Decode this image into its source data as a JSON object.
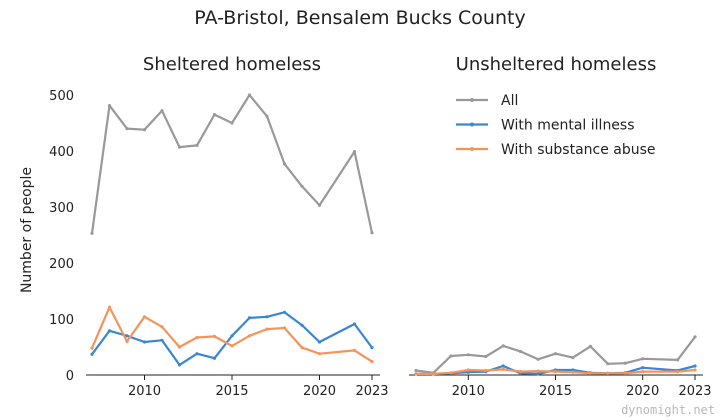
{
  "title": "PA-Bristol, Bensalem Bucks County",
  "watermark": "dynomight.net",
  "ylabel": "Number of people",
  "colors": {
    "All": "#999999",
    "With mental illness": "#3a86d4",
    "With substance abuse": "#f4945a"
  },
  "legend": [
    "All",
    "With mental illness",
    "With substance abuse"
  ],
  "chart_data": [
    {
      "type": "line",
      "title": "Sheltered homeless",
      "ylabel": "Number of people",
      "xlim": [
        2007,
        2023
      ],
      "ylim": [
        0,
        520
      ],
      "xticks": [
        2010,
        2015,
        2020,
        2023
      ],
      "yticks": [
        0,
        100,
        200,
        300,
        400,
        500
      ],
      "x": [
        2007,
        2008,
        2009,
        2010,
        2011,
        2012,
        2013,
        2014,
        2015,
        2016,
        2017,
        2018,
        2019,
        2020,
        2022,
        2023
      ],
      "series": [
        {
          "name": "All",
          "values": [
            253,
            481,
            440,
            438,
            472,
            407,
            410,
            465,
            450,
            500,
            462,
            377,
            337,
            303,
            399,
            254
          ]
        },
        {
          "name": "With mental illness",
          "values": [
            37,
            79,
            70,
            59,
            62,
            18,
            38,
            30,
            70,
            102,
            104,
            112,
            89,
            59,
            91,
            49
          ]
        },
        {
          "name": "With substance abuse",
          "values": [
            48,
            121,
            60,
            104,
            86,
            50,
            67,
            69,
            52,
            70,
            82,
            84,
            49,
            38,
            44,
            24
          ]
        }
      ]
    },
    {
      "type": "line",
      "title": "Unsheltered homeless",
      "xlim": [
        2007,
        2023
      ],
      "ylim": [
        0,
        520
      ],
      "xticks": [
        2010,
        2015,
        2020,
        2023
      ],
      "x": [
        2007,
        2008,
        2009,
        2010,
        2011,
        2012,
        2013,
        2014,
        2015,
        2016,
        2017,
        2018,
        2019,
        2020,
        2022,
        2023
      ],
      "series": [
        {
          "name": "All",
          "values": [
            8,
            4,
            34,
            36,
            33,
            52,
            42,
            28,
            38,
            31,
            51,
            20,
            21,
            29,
            27,
            68
          ]
        },
        {
          "name": "With mental illness",
          "values": [
            2,
            2,
            3,
            5,
            6,
            16,
            3,
            2,
            9,
            9,
            4,
            3,
            4,
            13,
            8,
            16
          ]
        },
        {
          "name": "With substance abuse",
          "values": [
            2,
            2,
            4,
            9,
            8,
            10,
            6,
            7,
            6,
            5,
            3,
            3,
            3,
            6,
            6,
            9
          ]
        }
      ]
    }
  ]
}
